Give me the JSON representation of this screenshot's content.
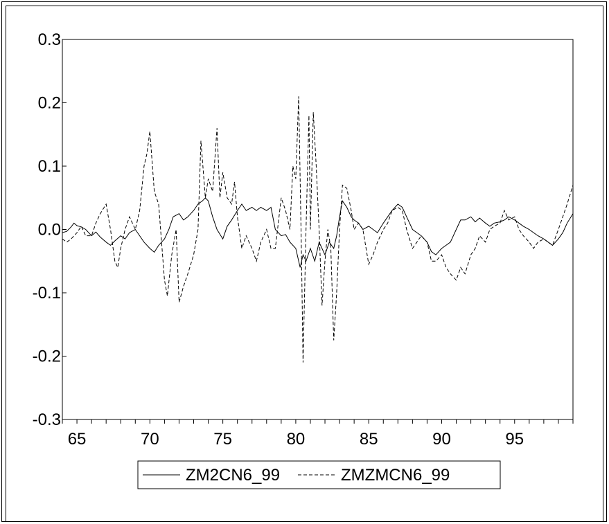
{
  "chart_data": {
    "type": "line",
    "title": "",
    "xlabel": "",
    "ylabel": "",
    "xlim": [
      1964,
      1999
    ],
    "ylim": [
      -0.3,
      0.3
    ],
    "x_ticks": [
      65,
      70,
      75,
      80,
      85,
      90,
      95
    ],
    "x_tick_labels": [
      "65",
      "70",
      "75",
      "80",
      "85",
      "90",
      "95"
    ],
    "y_ticks": [
      -0.3,
      -0.2,
      -0.1,
      0.0,
      0.1,
      0.2,
      0.3
    ],
    "y_tick_labels": [
      "-0.3",
      "-0.2",
      "-0.1",
      "0.0",
      "0.1",
      "0.2",
      "0.3"
    ],
    "grid": false,
    "legend_position": "bottom-center",
    "series": [
      {
        "name": "ZM2CN6_99",
        "style": "solid",
        "color": "#000000",
        "points": [
          [
            1964.0,
            -0.005
          ],
          [
            1964.3,
            -0.003
          ],
          [
            1964.6,
            0.004
          ],
          [
            1964.8,
            0.01
          ],
          [
            1965.0,
            0.006
          ],
          [
            1965.3,
            0.004
          ],
          [
            1965.6,
            0.0
          ],
          [
            1966.0,
            -0.01
          ],
          [
            1966.3,
            -0.004
          ],
          [
            1966.6,
            -0.012
          ],
          [
            1967.0,
            -0.02
          ],
          [
            1967.3,
            -0.025
          ],
          [
            1967.6,
            -0.018
          ],
          [
            1968.0,
            -0.01
          ],
          [
            1968.3,
            -0.015
          ],
          [
            1968.6,
            -0.005
          ],
          [
            1969.0,
            0.0
          ],
          [
            1969.3,
            -0.01
          ],
          [
            1969.6,
            -0.02
          ],
          [
            1970.0,
            -0.03
          ],
          [
            1970.3,
            -0.036
          ],
          [
            1970.6,
            -0.025
          ],
          [
            1971.0,
            -0.015
          ],
          [
            1971.3,
            0.0
          ],
          [
            1971.6,
            0.02
          ],
          [
            1972.0,
            0.025
          ],
          [
            1972.3,
            0.015
          ],
          [
            1972.6,
            0.02
          ],
          [
            1973.0,
            0.03
          ],
          [
            1973.3,
            0.04
          ],
          [
            1973.6,
            0.045
          ],
          [
            1973.8,
            0.05
          ],
          [
            1974.0,
            0.045
          ],
          [
            1974.3,
            0.02
          ],
          [
            1974.6,
            0.0
          ],
          [
            1975.0,
            -0.015
          ],
          [
            1975.3,
            0.005
          ],
          [
            1975.6,
            0.015
          ],
          [
            1976.0,
            0.03
          ],
          [
            1976.3,
            0.04
          ],
          [
            1976.6,
            0.03
          ],
          [
            1977.0,
            0.035
          ],
          [
            1977.3,
            0.03
          ],
          [
            1977.6,
            0.035
          ],
          [
            1978.0,
            0.03
          ],
          [
            1978.3,
            0.035
          ],
          [
            1978.6,
            0.0
          ],
          [
            1979.0,
            -0.01
          ],
          [
            1979.3,
            -0.008
          ],
          [
            1979.6,
            -0.02
          ],
          [
            1980.0,
            -0.03
          ],
          [
            1980.3,
            -0.06
          ],
          [
            1980.5,
            -0.04
          ],
          [
            1980.7,
            -0.05
          ],
          [
            1981.0,
            -0.03
          ],
          [
            1981.3,
            -0.05
          ],
          [
            1981.6,
            -0.02
          ],
          [
            1982.0,
            -0.04
          ],
          [
            1982.3,
            -0.02
          ],
          [
            1982.6,
            -0.03
          ],
          [
            1982.8,
            -0.01
          ],
          [
            1983.0,
            0.02
          ],
          [
            1983.2,
            0.045
          ],
          [
            1983.5,
            0.035
          ],
          [
            1983.8,
            0.02
          ],
          [
            1984.0,
            0.015
          ],
          [
            1984.3,
            0.01
          ],
          [
            1984.6,
            0.0
          ],
          [
            1985.0,
            0.005
          ],
          [
            1985.3,
            0.0
          ],
          [
            1985.6,
            -0.005
          ],
          [
            1986.0,
            0.01
          ],
          [
            1986.3,
            0.02
          ],
          [
            1986.6,
            0.03
          ],
          [
            1987.0,
            0.04
          ],
          [
            1987.3,
            0.035
          ],
          [
            1987.6,
            0.02
          ],
          [
            1988.0,
            0.0
          ],
          [
            1988.3,
            -0.005
          ],
          [
            1988.6,
            -0.01
          ],
          [
            1989.0,
            -0.02
          ],
          [
            1989.3,
            -0.035
          ],
          [
            1989.6,
            -0.04
          ],
          [
            1990.0,
            -0.03
          ],
          [
            1990.3,
            -0.025
          ],
          [
            1990.6,
            -0.02
          ],
          [
            1991.0,
            0.0
          ],
          [
            1991.3,
            0.015
          ],
          [
            1991.6,
            0.015
          ],
          [
            1992.0,
            0.02
          ],
          [
            1992.3,
            0.012
          ],
          [
            1992.6,
            0.018
          ],
          [
            1993.0,
            0.01
          ],
          [
            1993.3,
            0.005
          ],
          [
            1993.6,
            0.01
          ],
          [
            1994.0,
            0.012
          ],
          [
            1994.3,
            0.015
          ],
          [
            1994.6,
            0.02
          ],
          [
            1995.0,
            0.015
          ],
          [
            1995.3,
            0.01
          ],
          [
            1995.6,
            0.005
          ],
          [
            1996.0,
            0.0
          ],
          [
            1996.3,
            -0.005
          ],
          [
            1996.6,
            -0.01
          ],
          [
            1997.0,
            -0.015
          ],
          [
            1997.3,
            -0.02
          ],
          [
            1997.6,
            -0.025
          ],
          [
            1998.0,
            -0.015
          ],
          [
            1998.3,
            -0.005
          ],
          [
            1998.6,
            0.01
          ],
          [
            1999.0,
            0.025
          ]
        ]
      },
      {
        "name": "ZMZMCN6_99",
        "style": "dashed",
        "color": "#000000",
        "points": [
          [
            1964.0,
            -0.015
          ],
          [
            1964.3,
            -0.02
          ],
          [
            1964.6,
            -0.015
          ],
          [
            1965.0,
            -0.005
          ],
          [
            1965.3,
            0.005
          ],
          [
            1965.6,
            -0.01
          ],
          [
            1966.0,
            -0.01
          ],
          [
            1966.3,
            0.01
          ],
          [
            1966.6,
            0.025
          ],
          [
            1967.0,
            0.04
          ],
          [
            1967.3,
            0.0
          ],
          [
            1967.6,
            -0.05
          ],
          [
            1967.8,
            -0.06
          ],
          [
            1968.0,
            -0.03
          ],
          [
            1968.3,
            0.0
          ],
          [
            1968.6,
            0.02
          ],
          [
            1969.0,
            0.0
          ],
          [
            1969.3,
            0.03
          ],
          [
            1969.6,
            0.1
          ],
          [
            1969.8,
            0.12
          ],
          [
            1970.0,
            0.155
          ],
          [
            1970.3,
            0.06
          ],
          [
            1970.6,
            0.04
          ],
          [
            1971.0,
            -0.08
          ],
          [
            1971.2,
            -0.105
          ],
          [
            1971.5,
            -0.04
          ],
          [
            1971.8,
            0.0
          ],
          [
            1972.0,
            -0.115
          ],
          [
            1972.3,
            -0.09
          ],
          [
            1972.6,
            -0.07
          ],
          [
            1973.0,
            -0.04
          ],
          [
            1973.3,
            0.0
          ],
          [
            1973.5,
            0.14
          ],
          [
            1973.8,
            0.05
          ],
          [
            1974.0,
            0.08
          ],
          [
            1974.3,
            0.06
          ],
          [
            1974.6,
            0.16
          ],
          [
            1974.8,
            0.05
          ],
          [
            1975.0,
            0.09
          ],
          [
            1975.3,
            0.05
          ],
          [
            1975.6,
            0.04
          ],
          [
            1975.8,
            0.075
          ],
          [
            1976.0,
            0.02
          ],
          [
            1976.3,
            -0.03
          ],
          [
            1976.6,
            -0.01
          ],
          [
            1977.0,
            -0.03
          ],
          [
            1977.3,
            -0.05
          ],
          [
            1977.6,
            -0.02
          ],
          [
            1978.0,
            0.0
          ],
          [
            1978.3,
            -0.03
          ],
          [
            1978.6,
            -0.03
          ],
          [
            1979.0,
            0.05
          ],
          [
            1979.3,
            0.03
          ],
          [
            1979.6,
            0.0
          ],
          [
            1979.8,
            0.1
          ],
          [
            1980.0,
            0.08
          ],
          [
            1980.2,
            0.21
          ],
          [
            1980.4,
            -0.05
          ],
          [
            1980.5,
            -0.21
          ],
          [
            1980.7,
            0.0
          ],
          [
            1980.9,
            0.18
          ],
          [
            1981.0,
            0.0
          ],
          [
            1981.2,
            0.185
          ],
          [
            1981.4,
            0.1
          ],
          [
            1981.6,
            0.0
          ],
          [
            1981.8,
            -0.12
          ],
          [
            1982.0,
            -0.05
          ],
          [
            1982.2,
            0.0
          ],
          [
            1982.4,
            -0.03
          ],
          [
            1982.6,
            -0.175
          ],
          [
            1982.8,
            -0.1
          ],
          [
            1983.0,
            0.0
          ],
          [
            1983.2,
            0.07
          ],
          [
            1983.5,
            0.065
          ],
          [
            1983.8,
            0.03
          ],
          [
            1984.0,
            0.0
          ],
          [
            1984.3,
            0.01
          ],
          [
            1984.6,
            0.0
          ],
          [
            1985.0,
            -0.055
          ],
          [
            1985.3,
            -0.04
          ],
          [
            1985.6,
            -0.02
          ],
          [
            1986.0,
            0.0
          ],
          [
            1986.3,
            0.01
          ],
          [
            1986.6,
            0.03
          ],
          [
            1987.0,
            0.035
          ],
          [
            1987.3,
            0.03
          ],
          [
            1987.6,
            0.0
          ],
          [
            1988.0,
            -0.03
          ],
          [
            1988.3,
            -0.02
          ],
          [
            1988.6,
            -0.01
          ],
          [
            1989.0,
            -0.02
          ],
          [
            1989.3,
            -0.05
          ],
          [
            1989.6,
            -0.05
          ],
          [
            1990.0,
            -0.04
          ],
          [
            1990.3,
            -0.06
          ],
          [
            1990.6,
            -0.07
          ],
          [
            1991.0,
            -0.08
          ],
          [
            1991.3,
            -0.06
          ],
          [
            1991.6,
            -0.07
          ],
          [
            1992.0,
            -0.04
          ],
          [
            1992.3,
            -0.03
          ],
          [
            1992.6,
            -0.01
          ],
          [
            1993.0,
            -0.02
          ],
          [
            1993.3,
            0.0
          ],
          [
            1993.6,
            0.005
          ],
          [
            1994.0,
            0.01
          ],
          [
            1994.3,
            0.03
          ],
          [
            1994.6,
            0.015
          ],
          [
            1995.0,
            0.02
          ],
          [
            1995.3,
            0.0
          ],
          [
            1995.6,
            -0.01
          ],
          [
            1996.0,
            -0.02
          ],
          [
            1996.3,
            -0.03
          ],
          [
            1996.6,
            -0.02
          ],
          [
            1997.0,
            -0.015
          ],
          [
            1997.3,
            -0.02
          ],
          [
            1997.6,
            -0.025
          ],
          [
            1998.0,
            0.0
          ],
          [
            1998.3,
            0.02
          ],
          [
            1998.6,
            0.04
          ],
          [
            1999.0,
            0.07
          ]
        ]
      }
    ]
  },
  "legend": {
    "items": [
      {
        "label": "ZM2CN6_99",
        "style": "solid"
      },
      {
        "label": "ZMZMCN6_99",
        "style": "dashed"
      }
    ]
  }
}
